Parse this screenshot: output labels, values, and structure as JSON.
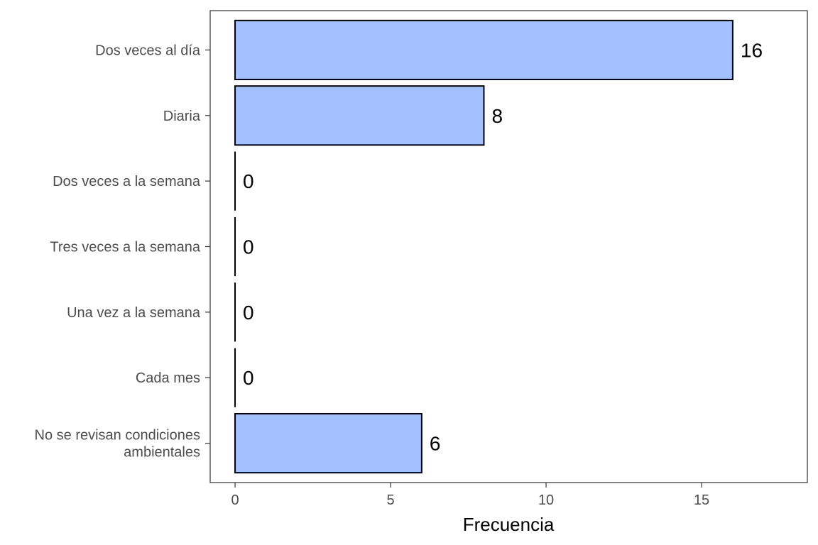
{
  "chart_data": {
    "type": "bar",
    "orientation": "horizontal",
    "categories": [
      "Dos veces al día",
      "Diaria",
      "Dos veces a la semana",
      "Tres veces a la semana",
      "Una vez a la semana",
      "Cada mes",
      "No se revisan condiciones\nambientales"
    ],
    "values": [
      16,
      8,
      0,
      0,
      0,
      0,
      6
    ],
    "data_labels": [
      "16",
      "8",
      "0",
      "0",
      "0",
      "0",
      "6"
    ],
    "title": "",
    "xlabel": "Frecuencia",
    "ylabel": "",
    "xlim": [
      -0.8,
      18.4
    ],
    "x_ticks": [
      0,
      5,
      10,
      15
    ],
    "x_tick_labels": [
      "0",
      "5",
      "10",
      "15"
    ],
    "grid": false,
    "legend": "none",
    "bar_color": "#a3c1ff",
    "bar_edge_color": "#000000"
  }
}
